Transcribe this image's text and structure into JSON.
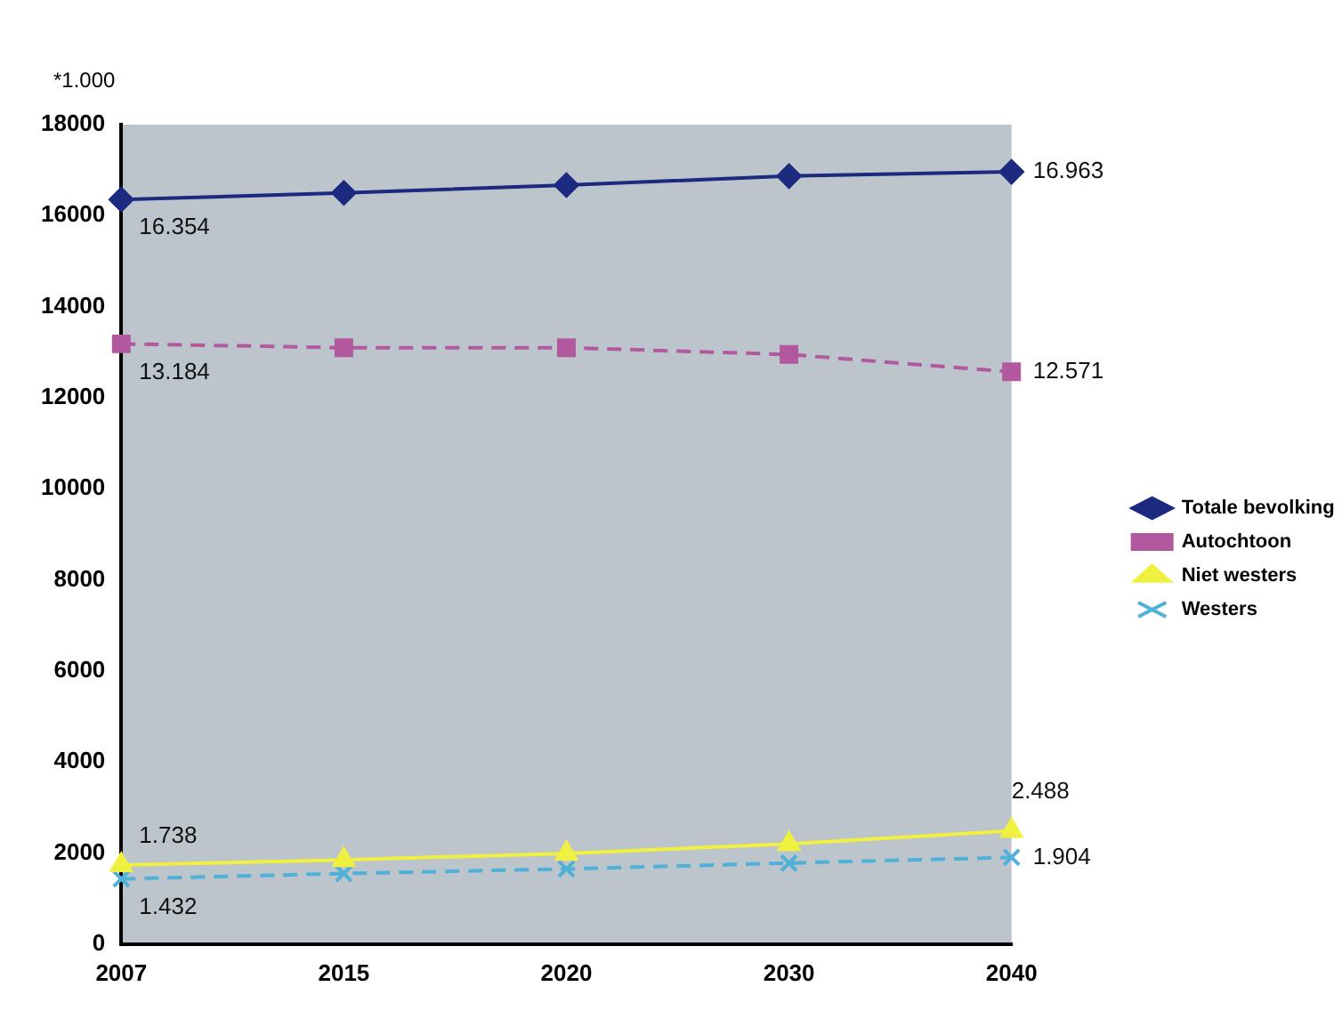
{
  "chart_data": {
    "type": "line",
    "categories": [
      "2007",
      "2015",
      "2020",
      "2030",
      "2040"
    ],
    "series": [
      {
        "name": "Totale bevolking",
        "color": "#1c2a80",
        "marker": "diamond",
        "line_style": "solid",
        "values": [
          16354,
          16500,
          16670,
          16870,
          16963
        ],
        "value_labels": [
          "16.354",
          null,
          null,
          null,
          "16.963"
        ]
      },
      {
        "name": "Autochtoon",
        "color": "#b2589e",
        "marker": "square",
        "line_style": "dashed",
        "values": [
          13184,
          13100,
          13100,
          12950,
          12571
        ],
        "value_labels": [
          "13.184",
          null,
          null,
          null,
          "12.571"
        ]
      },
      {
        "name": "Niet westers",
        "color": "#f0f040",
        "marker": "triangle",
        "line_style": "solid",
        "values": [
          1738,
          1850,
          1990,
          2200,
          2488
        ],
        "value_labels": [
          "1.738",
          null,
          null,
          null,
          "2.488"
        ]
      },
      {
        "name": "Westers",
        "color": "#4fb0d8",
        "marker": "cross",
        "line_style": "dashed",
        "values": [
          1432,
          1550,
          1650,
          1780,
          1904
        ],
        "value_labels": [
          "1.432",
          null,
          null,
          null,
          "1.904"
        ]
      }
    ],
    "ylim": [
      0,
      18000
    ],
    "yticks": [
      0,
      2000,
      4000,
      6000,
      8000,
      10000,
      12000,
      14000,
      16000,
      18000
    ],
    "annotations": [
      "*1.000"
    ],
    "grid": false,
    "legend": "right"
  }
}
